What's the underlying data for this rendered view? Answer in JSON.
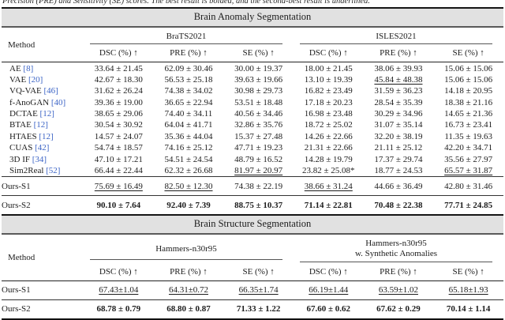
{
  "caption": "Precision (PRE) and Sensitivity (SE) scores. The best result is bolded, and the second-best result is underlined.",
  "anomaly": {
    "title": "Brain Anomaly Segmentation",
    "method_label": "Method",
    "group1": "BraTS2021",
    "group2": "ISLES2021",
    "cols": [
      "DSC (%) ↑",
      "PRE (%) ↑",
      "SE (%) ↑",
      "DSC (%) ↑",
      "PRE (%) ↑",
      "SE (%) ↑"
    ],
    "rows": [
      {
        "method": "AE",
        "cite": "[8]",
        "cells": [
          "33.64 ± 21.45",
          "62.09 ± 30.46",
          "30.00 ± 19.37",
          "18.00 ± 21.45",
          "38.06 ± 39.93",
          "15.06 ± 15.06"
        ],
        "styles": [
          "",
          "",
          "",
          "",
          "",
          ""
        ]
      },
      {
        "method": "VAE",
        "cite": "[20]",
        "cells": [
          "42.67 ± 18.30",
          "56.53 ± 25.18",
          "39.63 ± 19.66",
          "13.10 ± 19.39",
          "45.84 ± 48.38",
          "15.06 ± 15.06"
        ],
        "styles": [
          "",
          "",
          "",
          "",
          "u",
          ""
        ]
      },
      {
        "method": "VQ-VAE",
        "cite": "[46]",
        "cells": [
          "31.62 ± 26.24",
          "74.38 ± 34.02",
          "30.98 ± 29.73",
          "16.82 ± 23.49",
          "31.59 ± 36.23",
          "14.18 ± 20.95"
        ],
        "styles": [
          "",
          "",
          "",
          "",
          "",
          ""
        ]
      },
      {
        "method": "f-AnoGAN",
        "cite": "[40]",
        "cells": [
          "39.36 ± 19.00",
          "36.65 ± 22.94",
          "53.51 ± 18.48",
          "17.18 ± 20.23",
          "28.54 ± 35.39",
          "18.38 ± 21.16"
        ],
        "styles": [
          "",
          "",
          "",
          "",
          "",
          ""
        ]
      },
      {
        "method": "DCTAE",
        "cite": "[12]",
        "cells": [
          "38.65 ± 29.06",
          "74.40 ± 34.11",
          "40.56 ± 34.46",
          "16.98 ± 23.48",
          "30.29 ± 34.96",
          "14.65 ± 21.36"
        ],
        "styles": [
          "",
          "",
          "",
          "",
          "",
          ""
        ]
      },
      {
        "method": "BTAE",
        "cite": "[12]",
        "cells": [
          "30.54 ± 30.92",
          "64.04 ± 41.71",
          "32.86 ± 35.76",
          "18.72 ± 25.02",
          "31.07 ± 35.14",
          "16.73 ± 23.41"
        ],
        "styles": [
          "",
          "",
          "",
          "",
          "",
          ""
        ]
      },
      {
        "method": "HTAES",
        "cite": "[12]",
        "cells": [
          "14.57 ± 24.07",
          "35.36 ± 44.04",
          "15.37 ± 27.48",
          "14.26 ± 22.66",
          "32.20 ± 38.19",
          "11.35 ± 19.63"
        ],
        "styles": [
          "",
          "",
          "",
          "",
          "",
          ""
        ]
      },
      {
        "method": "CUAS",
        "cite": "[42]",
        "cells": [
          "54.74 ± 18.57",
          "74.16 ± 25.12",
          "47.71 ± 19.23",
          "21.31 ± 22.66",
          "21.11 ± 25.12",
          "42.20 ± 34.71"
        ],
        "styles": [
          "",
          "",
          "",
          "",
          "",
          ""
        ]
      },
      {
        "method": "3D IF",
        "cite": "[34]",
        "cells": [
          "47.10 ± 17.21",
          "54.51 ± 24.54",
          "48.79 ± 16.52",
          "14.28 ± 19.79",
          "17.37 ± 29.74",
          "35.56 ± 27.97"
        ],
        "styles": [
          "",
          "",
          "",
          "",
          "",
          ""
        ]
      },
      {
        "method": "Sim2Real",
        "cite": "[52]",
        "cells": [
          "66.44 ± 22.44",
          "62.32 ± 26.68",
          "81.97 ± 20.97",
          "23.82 ± 25.08*",
          "18.77 ± 24.53",
          "65.57 ± 31.87"
        ],
        "styles": [
          "",
          "",
          "u",
          "",
          "",
          "u"
        ]
      },
      {
        "method": "Ours-S1",
        "cite": "",
        "cells": [
          "75.69 ± 16.49",
          "82.50 ± 12.30",
          "74.38 ± 22.19",
          "38.66 ± 31.24",
          "44.66 ± 36.49",
          "42.80 ± 31.46"
        ],
        "styles": [
          "u",
          "u",
          "",
          "u",
          "",
          ""
        ]
      },
      {
        "method": "Ours-S2",
        "cite": "",
        "cells": [
          "90.10 ± 7.64",
          "92.40 ± 7.39",
          "88.75 ± 10.37",
          "71.14 ± 22.81",
          "70.48 ± 22.38",
          "77.71 ± 24.85"
        ],
        "styles": [
          "b",
          "b",
          "b",
          "b",
          "b",
          "b"
        ]
      }
    ]
  },
  "structure": {
    "title": "Brain Structure Segmentation",
    "method_label": "Method",
    "group1": "Hammers-n30r95",
    "group2_line1": "Hammers-n30r95",
    "group2_line2": "w. Synthetic Anomalies",
    "cols": [
      "DSC (%) ↑",
      "PRE (%) ↑",
      "SE (%) ↑",
      "DSC (%) ↑",
      "PRE (%) ↑",
      "SE (%) ↑"
    ],
    "rows": [
      {
        "method": "Ours-S1",
        "cite": "",
        "cells": [
          "67.43±1.04",
          "64.31±0.72",
          "66.35±1.74",
          "66.19±1.44",
          "63.59±1.02",
          "65.18±1.93"
        ],
        "styles": [
          "u",
          "u",
          "u",
          "u",
          "u",
          "u"
        ]
      },
      {
        "method": "Ours-S2",
        "cite": "",
        "cells": [
          "68.78 ± 0.79",
          "68.80 ± 0.87",
          "71.33 ± 1.22",
          "67.60 ± 0.62",
          "67.62 ± 0.29",
          "70.14 ± 1.14"
        ],
        "styles": [
          "b",
          "b",
          "b",
          "b",
          "b",
          "b"
        ]
      }
    ]
  }
}
